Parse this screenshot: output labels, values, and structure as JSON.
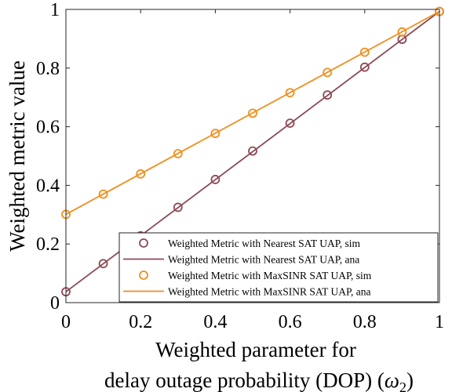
{
  "chart_data": {
    "type": "line",
    "title": "",
    "xlabel_line1": "Weighted parameter for",
    "xlabel_line2": "delay outage probability (DOP) (",
    "xlabel_symbol": "ω",
    "xlabel_subscript": "2",
    "xlabel_close": ")",
    "ylabel": "Weighted metric value",
    "xlim": [
      0,
      1
    ],
    "ylim": [
      0,
      1
    ],
    "xticks": [
      0,
      0.2,
      0.4,
      0.6,
      0.8,
      1
    ],
    "xtick_labels": [
      "0",
      "0.2",
      "0.4",
      "0.6",
      "0.8",
      "1"
    ],
    "yticks": [
      0,
      0.2,
      0.4,
      0.6,
      0.8,
      1
    ],
    "ytick_labels": [
      "0",
      "0.2",
      "0.4",
      "0.6",
      "0.8",
      "1"
    ],
    "grid": false,
    "legend_position": "bottom-right",
    "series": [
      {
        "name": "Weighted Metric with Nearest SAT UAP, sim",
        "color": "#8c4a55",
        "style": "marker",
        "x": [
          0,
          0.1,
          0.2,
          0.3,
          0.4,
          0.5,
          0.6,
          0.7,
          0.8,
          0.9,
          1.0
        ],
        "y": [
          0.037,
          0.133,
          0.228,
          0.325,
          0.42,
          0.517,
          0.612,
          0.708,
          0.803,
          0.898,
          0.993
        ]
      },
      {
        "name": "Weighted Metric with Nearest SAT UAP, ana",
        "color": "#8c4a55",
        "style": "line",
        "x": [
          0,
          1.0
        ],
        "y": [
          0.037,
          0.993
        ]
      },
      {
        "name": "Weighted Metric with MaxSINR SAT UAP, sim",
        "color": "#f28e1c",
        "style": "marker",
        "x": [
          0,
          0.1,
          0.2,
          0.3,
          0.4,
          0.5,
          0.6,
          0.7,
          0.8,
          0.9,
          1.0
        ],
        "y": [
          0.301,
          0.37,
          0.439,
          0.508,
          0.577,
          0.646,
          0.716,
          0.785,
          0.854,
          0.923,
          0.993
        ]
      },
      {
        "name": "Weighted Metric with MaxSINR SAT UAP, ana",
        "color": "#f28e1c",
        "style": "line",
        "x": [
          0,
          1.0
        ],
        "y": [
          0.301,
          0.993
        ]
      }
    ]
  }
}
